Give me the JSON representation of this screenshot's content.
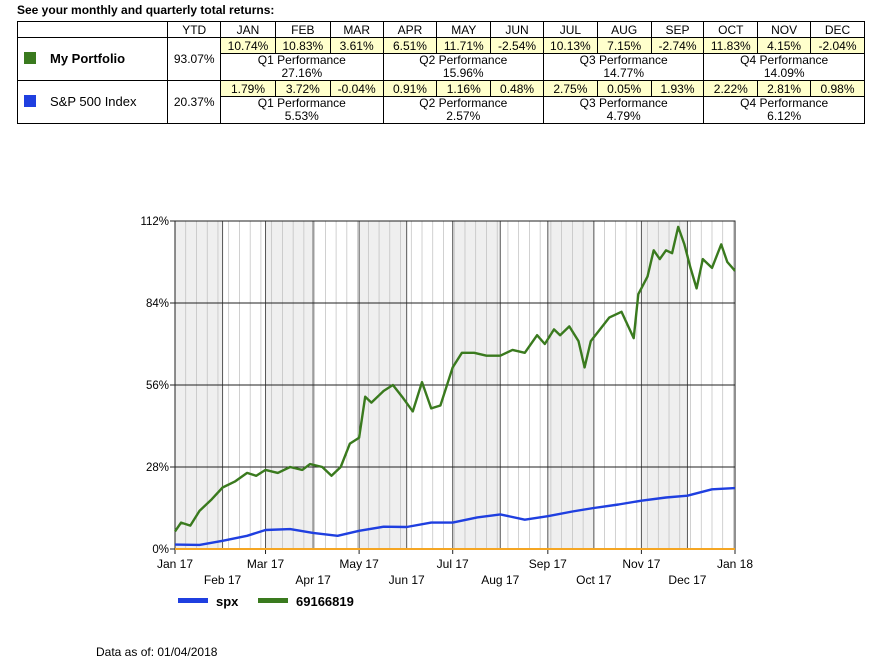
{
  "heading": "See your monthly and quarterly total returns:",
  "table": {
    "ytd_label": "YTD",
    "months": [
      "JAN",
      "FEB",
      "MAR",
      "APR",
      "MAY",
      "JUN",
      "JUL",
      "AUG",
      "SEP",
      "OCT",
      "NOV",
      "DEC"
    ],
    "rows": [
      {
        "name": "My Portfolio",
        "color": "#3a7a1e",
        "ytd": "93.07%",
        "monthly": [
          "10.74%",
          "10.83%",
          "3.61%",
          "6.51%",
          "11.71%",
          "-2.54%",
          "10.13%",
          "7.15%",
          "-2.74%",
          "11.83%",
          "4.15%",
          "-2.04%"
        ],
        "quarters": [
          {
            "label": "Q1 Performance",
            "value": "27.16%"
          },
          {
            "label": "Q2 Performance",
            "value": "15.96%"
          },
          {
            "label": "Q3 Performance",
            "value": "14.77%"
          },
          {
            "label": "Q4 Performance",
            "value": "14.09%"
          }
        ]
      },
      {
        "name": "S&P 500 Index",
        "color": "#1f3fe0",
        "ytd": "20.37%",
        "monthly": [
          "1.79%",
          "3.72%",
          "-0.04%",
          "0.91%",
          "1.16%",
          "0.48%",
          "2.75%",
          "0.05%",
          "1.93%",
          "2.22%",
          "2.81%",
          "0.98%"
        ],
        "quarters": [
          {
            "label": "Q1 Performance",
            "value": "5.53%"
          },
          {
            "label": "Q2 Performance",
            "value": "2.57%"
          },
          {
            "label": "Q3 Performance",
            "value": "4.79%"
          },
          {
            "label": "Q4 Performance",
            "value": "6.12%"
          }
        ]
      }
    ]
  },
  "chart_data": {
    "type": "line",
    "y_ticks": [
      "0%",
      "28%",
      "56%",
      "84%",
      "112%"
    ],
    "y_tick_values": [
      0,
      28,
      56,
      84,
      112
    ],
    "ylim": [
      0,
      112
    ],
    "xlim": [
      "2017-01-04",
      "2018-01-04"
    ],
    "x_ticks_upper": [
      {
        "date": "2017-01-04",
        "label": "Jan 17"
      },
      {
        "date": "2017-03-04",
        "label": "Mar 17"
      },
      {
        "date": "2017-05-04",
        "label": "May 17"
      },
      {
        "date": "2017-07-04",
        "label": "Jul 17"
      },
      {
        "date": "2017-09-04",
        "label": "Sep 17"
      },
      {
        "date": "2017-11-04",
        "label": "Nov 17"
      },
      {
        "date": "2018-01-04",
        "label": "Jan 18"
      }
    ],
    "x_ticks_lower": [
      {
        "date": "2017-02-04",
        "label": "Feb 17"
      },
      {
        "date": "2017-04-04",
        "label": "Apr 17"
      },
      {
        "date": "2017-06-04",
        "label": "Jun 17"
      },
      {
        "date": "2017-08-04",
        "label": "Aug 17"
      },
      {
        "date": "2017-10-04",
        "label": "Oct 17"
      },
      {
        "date": "2017-12-04",
        "label": "Dec 17"
      }
    ],
    "series": [
      {
        "name": "69166819",
        "color": "#3a7a1e",
        "points": [
          [
            "2017-01-04",
            6
          ],
          [
            "2017-01-08",
            9
          ],
          [
            "2017-01-14",
            8
          ],
          [
            "2017-01-20",
            13
          ],
          [
            "2017-01-28",
            17
          ],
          [
            "2017-02-04",
            21
          ],
          [
            "2017-02-12",
            23
          ],
          [
            "2017-02-20",
            26
          ],
          [
            "2017-02-26",
            25
          ],
          [
            "2017-03-04",
            27
          ],
          [
            "2017-03-12",
            26
          ],
          [
            "2017-03-20",
            28
          ],
          [
            "2017-03-28",
            27
          ],
          [
            "2017-04-02",
            29
          ],
          [
            "2017-04-10",
            28
          ],
          [
            "2017-04-16",
            25
          ],
          [
            "2017-04-22",
            28
          ],
          [
            "2017-04-28",
            36
          ],
          [
            "2017-05-04",
            38
          ],
          [
            "2017-05-08",
            52
          ],
          [
            "2017-05-12",
            50
          ],
          [
            "2017-05-20",
            54
          ],
          [
            "2017-05-26",
            56
          ],
          [
            "2017-06-01",
            52
          ],
          [
            "2017-06-08",
            47
          ],
          [
            "2017-06-14",
            57
          ],
          [
            "2017-06-20",
            48
          ],
          [
            "2017-06-26",
            49
          ],
          [
            "2017-07-04",
            62
          ],
          [
            "2017-07-10",
            67
          ],
          [
            "2017-07-18",
            67
          ],
          [
            "2017-07-26",
            66
          ],
          [
            "2017-08-04",
            66
          ],
          [
            "2017-08-12",
            68
          ],
          [
            "2017-08-20",
            67
          ],
          [
            "2017-08-28",
            73
          ],
          [
            "2017-09-02",
            70
          ],
          [
            "2017-09-08",
            75
          ],
          [
            "2017-09-12",
            73
          ],
          [
            "2017-09-18",
            76
          ],
          [
            "2017-09-24",
            71
          ],
          [
            "2017-09-28",
            62
          ],
          [
            "2017-10-02",
            71
          ],
          [
            "2017-10-08",
            75
          ],
          [
            "2017-10-14",
            79
          ],
          [
            "2017-10-22",
            81
          ],
          [
            "2017-10-30",
            72
          ],
          [
            "2017-11-02",
            87
          ],
          [
            "2017-11-08",
            93
          ],
          [
            "2017-11-12",
            102
          ],
          [
            "2017-11-16",
            99
          ],
          [
            "2017-11-20",
            102
          ],
          [
            "2017-11-24",
            101
          ],
          [
            "2017-11-28",
            110
          ],
          [
            "2017-12-02",
            104
          ],
          [
            "2017-12-06",
            96
          ],
          [
            "2017-12-10",
            89
          ],
          [
            "2017-12-14",
            99
          ],
          [
            "2017-12-20",
            96
          ],
          [
            "2017-12-26",
            104
          ],
          [
            "2017-12-30",
            98
          ],
          [
            "2018-01-04",
            95
          ]
        ]
      },
      {
        "name": "spx",
        "color": "#1f3fe0",
        "points": [
          [
            "2017-01-04",
            1.5
          ],
          [
            "2017-01-20",
            1.4
          ],
          [
            "2017-02-04",
            2.8
          ],
          [
            "2017-02-20",
            4.5
          ],
          [
            "2017-03-04",
            6.5
          ],
          [
            "2017-03-20",
            6.8
          ],
          [
            "2017-04-04",
            5.5
          ],
          [
            "2017-04-20",
            4.5
          ],
          [
            "2017-05-04",
            6.2
          ],
          [
            "2017-05-20",
            7.6
          ],
          [
            "2017-06-04",
            7.5
          ],
          [
            "2017-06-20",
            9.0
          ],
          [
            "2017-07-04",
            9.0
          ],
          [
            "2017-07-20",
            10.8
          ],
          [
            "2017-08-04",
            11.8
          ],
          [
            "2017-08-20",
            10.0
          ],
          [
            "2017-09-04",
            11.2
          ],
          [
            "2017-09-20",
            12.8
          ],
          [
            "2017-10-04",
            14.0
          ],
          [
            "2017-10-20",
            15.2
          ],
          [
            "2017-11-04",
            16.5
          ],
          [
            "2017-11-20",
            17.6
          ],
          [
            "2017-12-04",
            18.2
          ],
          [
            "2017-12-20",
            20.4
          ],
          [
            "2018-01-04",
            20.8
          ]
        ]
      },
      {
        "name": "baseline",
        "color": "#f5a623",
        "points": [
          [
            "2017-01-04",
            0
          ],
          [
            "2018-01-04",
            0
          ]
        ]
      }
    ]
  },
  "legend": [
    {
      "name": "spx",
      "color": "#1f3fe0"
    },
    {
      "name": "69166819",
      "color": "#3a7a1e"
    }
  ],
  "footer": {
    "as_of": "Data as of: 01/04/2018"
  }
}
